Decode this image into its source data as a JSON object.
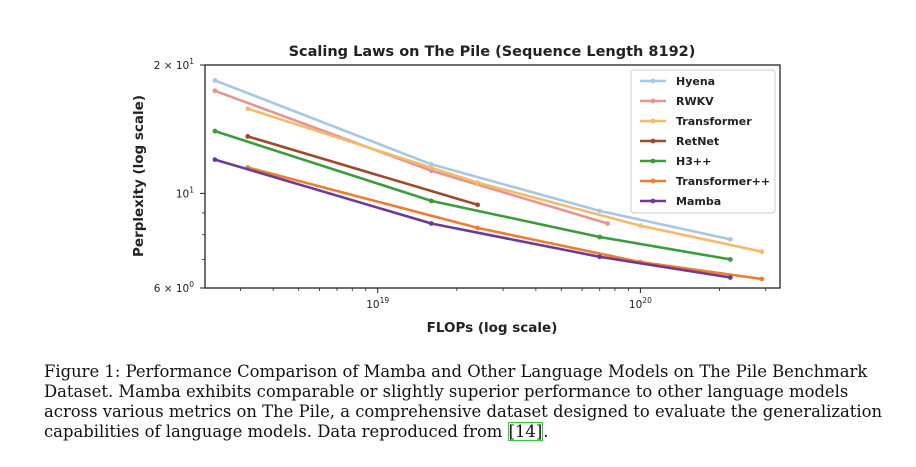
{
  "chart_data": {
    "type": "line",
    "title": "Scaling Laws on The Pile (Sequence Length 8192)",
    "xlabel": "FLOPs (log scale)",
    "ylabel": "Perplexity (log scale)",
    "xscale": "log",
    "yscale": "log",
    "xlim": [
      2.2e+18,
      3.4e+20
    ],
    "ylim": [
      6,
      20
    ],
    "x_tick_labels": [
      {
        "value": 1e+19,
        "base": "10",
        "exp": "19"
      },
      {
        "value": 1e+20,
        "base": "10",
        "exp": "20"
      }
    ],
    "y_tick_labels": [
      {
        "value": 6,
        "label": "6 × 10",
        "exp": "0"
      },
      {
        "value": 10,
        "label": "10",
        "exp": "1"
      },
      {
        "value": 20,
        "label": "2 × 10",
        "exp": "1"
      }
    ],
    "grid": false,
    "legend_position": "top-right",
    "series": [
      {
        "name": "Hyena",
        "color": "#a6c8e4",
        "points": [
          [
            2.4e+18,
            18.4
          ],
          [
            1.6e+19,
            11.7
          ],
          [
            7e+19,
            9.1
          ],
          [
            2.2e+20,
            7.8
          ]
        ]
      },
      {
        "name": "RWKV",
        "color": "#e6948f",
        "points": [
          [
            2.4e+18,
            17.4
          ],
          [
            1.6e+19,
            11.3
          ],
          [
            7.5e+19,
            8.5
          ]
        ]
      },
      {
        "name": "Transformer",
        "color": "#f5bb6a",
        "points": [
          [
            3.2e+18,
            15.8
          ],
          [
            2.4e+19,
            10.6
          ],
          [
            1e+20,
            8.4
          ],
          [
            2.9e+20,
            7.3
          ]
        ]
      },
      {
        "name": "RetNet",
        "color": "#9b4a2c",
        "points": [
          [
            3.2e+18,
            13.6
          ],
          [
            2.4e+19,
            9.4
          ]
        ]
      },
      {
        "name": "H3++",
        "color": "#3b9c3b",
        "points": [
          [
            2.4e+18,
            14.0
          ],
          [
            1.6e+19,
            9.6
          ],
          [
            7e+19,
            7.9
          ],
          [
            2.2e+20,
            7.0
          ]
        ]
      },
      {
        "name": "Transformer++",
        "color": "#ee7d30",
        "points": [
          [
            3.2e+18,
            11.5
          ],
          [
            2.4e+19,
            8.3
          ],
          [
            1e+20,
            6.9
          ],
          [
            2.9e+20,
            6.3
          ]
        ]
      },
      {
        "name": "Mamba",
        "color": "#6a3b99",
        "points": [
          [
            2.4e+18,
            12.0
          ],
          [
            1.6e+19,
            8.5
          ],
          [
            7e+19,
            7.1
          ],
          [
            2.2e+20,
            6.35
          ]
        ]
      }
    ]
  },
  "caption": {
    "lines": [
      "Figure 1: Performance Comparison of Mamba and Other Language Models on The Pile Benchmark",
      "Dataset. Mamba exhibits comparable or slightly superior performance to other language models",
      "across various metrics on The Pile, a comprehensive dataset designed to evaluate the generalization"
    ],
    "last_line_prefix": "capabilities of language models. Data reproduced from ",
    "ref_text": "[14]",
    "last_line_suffix": "."
  }
}
